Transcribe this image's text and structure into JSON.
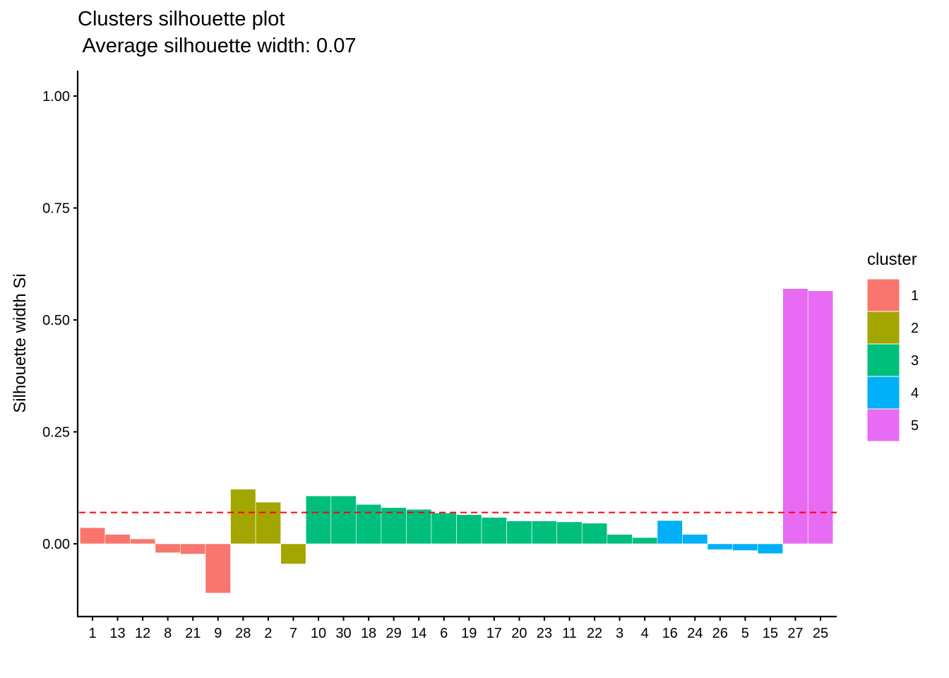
{
  "chart_data": {
    "type": "bar",
    "title": "Clusters silhouette plot",
    "subtitle": " Average silhouette width: 0.07",
    "xlabel": "",
    "ylabel": "Silhouette width Si",
    "ylim": [
      -0.16,
      1.06
    ],
    "yticks": [
      0.0,
      0.25,
      0.5,
      0.75,
      1.0
    ],
    "ytick_labels": [
      "0.00",
      "0.25",
      "0.50",
      "0.75",
      "1.00"
    ],
    "average_line": 0.07,
    "grid": false,
    "legend": {
      "title": "cluster",
      "position": "right",
      "items": [
        {
          "label": "1",
          "color": "#F8766D"
        },
        {
          "label": "2",
          "color": "#A3A500"
        },
        {
          "label": "3",
          "color": "#00BF7D"
        },
        {
          "label": "4",
          "color": "#00B0F6"
        },
        {
          "label": "5",
          "color": "#E76BF3"
        }
      ]
    },
    "categories": [
      "1",
      "13",
      "12",
      "8",
      "21",
      "9",
      "28",
      "2",
      "7",
      "10",
      "30",
      "18",
      "29",
      "14",
      "6",
      "19",
      "17",
      "20",
      "23",
      "11",
      "22",
      "3",
      "4",
      "16",
      "24",
      "26",
      "5",
      "15",
      "27",
      "25"
    ],
    "values": [
      0.036,
      0.021,
      0.011,
      -0.02,
      -0.023,
      -0.11,
      0.122,
      0.093,
      -0.045,
      0.107,
      0.107,
      0.088,
      0.081,
      0.077,
      0.069,
      0.065,
      0.059,
      0.051,
      0.051,
      0.049,
      0.046,
      0.021,
      0.014,
      0.052,
      0.021,
      -0.013,
      -0.015,
      -0.022,
      0.57,
      0.565
    ],
    "cluster": [
      1,
      1,
      1,
      1,
      1,
      1,
      2,
      2,
      2,
      3,
      3,
      3,
      3,
      3,
      3,
      3,
      3,
      3,
      3,
      3,
      3,
      3,
      3,
      4,
      4,
      4,
      4,
      4,
      5,
      5
    ]
  }
}
